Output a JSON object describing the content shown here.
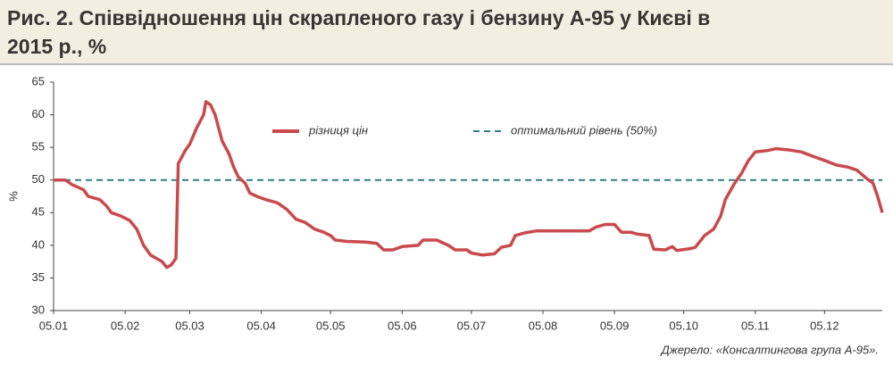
{
  "chart_data": {
    "type": "line",
    "title": "Рис. 2. Співвідношення цін скрапленого газу і бензину А-95 у Києві в 2015 р., %",
    "y_label": "%",
    "source": "Джерело: «Консалтингова група А-95».",
    "x": [
      "05.01",
      "10.01",
      "13.01",
      "18.01",
      "20.01",
      "25.01",
      "28.01",
      "30.01",
      "03.02",
      "07.02",
      "10.02",
      "13.02",
      "16.02",
      "21.02",
      "23.02",
      "25.02",
      "27.02",
      "28.02",
      "03.03",
      "05.03",
      "08.03",
      "11.03",
      "12.03",
      "14.03",
      "16.03",
      "19.03",
      "22.03",
      "24.03",
      "26.03",
      "29.03",
      "31.03",
      "03.04",
      "07.04",
      "12.04",
      "16.04",
      "20.04",
      "24.04",
      "28.04",
      "02.05",
      "05.05",
      "07.05",
      "12.05",
      "20.05",
      "25.05",
      "28.05",
      "01.06",
      "05.06",
      "12.06",
      "14.06",
      "20.06",
      "25.06",
      "28.06",
      "03.07",
      "05.07",
      "10.07",
      "15.07",
      "18.07",
      "22.07",
      "24.07",
      "28.07",
      "02.08",
      "15.08",
      "25.08",
      "28.08",
      "01.09",
      "05.09",
      "08.09",
      "12.09",
      "15.09",
      "20.09",
      "22.09",
      "27.09",
      "30.09",
      "02.10",
      "08.10",
      "10.10",
      "14.10",
      "18.10",
      "21.10",
      "23.10",
      "27.10",
      "30.10",
      "02.11",
      "05.11",
      "10.11",
      "14.11",
      "20.11",
      "25.11",
      "01.12",
      "05.12",
      "10.12",
      "15.12",
      "19.12",
      "23.12",
      "26.12",
      "28.12",
      "30.12"
    ],
    "series": [
      {
        "name": "різниця цін",
        "color": "#c94a4c",
        "values": [
          50,
          50,
          49.3,
          48.5,
          47.5,
          47,
          46,
          45,
          44.5,
          43.8,
          42.5,
          40,
          38.5,
          37.5,
          36.6,
          37,
          38,
          52.5,
          54.5,
          55.5,
          58,
          60,
          62,
          61.5,
          60,
          56,
          54,
          52,
          50.5,
          49.5,
          48,
          47.5,
          47,
          46.5,
          45.5,
          44,
          43.5,
          42.5,
          42,
          41.5,
          40.8,
          40.6,
          40.5,
          40.3,
          39.3,
          39.3,
          39.8,
          40,
          40.8,
          40.8,
          40,
          39.3,
          39.3,
          38.8,
          38.5,
          38.7,
          39.7,
          40,
          41.5,
          41.9,
          42.2,
          42.2,
          42.2,
          42.8,
          43.2,
          43.2,
          42,
          42,
          41.7,
          41.5,
          39.4,
          39.3,
          39.8,
          39.2,
          39.5,
          39.7,
          41.5,
          42.5,
          44.5,
          47,
          49.5,
          51,
          53,
          54.3,
          54.5,
          54.8,
          54.6,
          54.3,
          53.5,
          53,
          52.3,
          52,
          51.5,
          50.3,
          49.5,
          47.5,
          45
        ]
      }
    ],
    "reference_line": {
      "name": "оптимальний рівень (50%)",
      "value": 50,
      "color": "#2e7d86"
    },
    "xlim": [
      "05.01",
      "30.12"
    ],
    "xticks": [
      "05.01",
      "05.02",
      "05.03",
      "05.04",
      "05.05",
      "05.06",
      "05.07",
      "05.08",
      "05.09",
      "05.10",
      "05.11",
      "05.12"
    ],
    "ylim": [
      30,
      65
    ],
    "yticks": [
      30,
      35,
      40,
      45,
      50,
      55,
      60,
      65
    ]
  }
}
